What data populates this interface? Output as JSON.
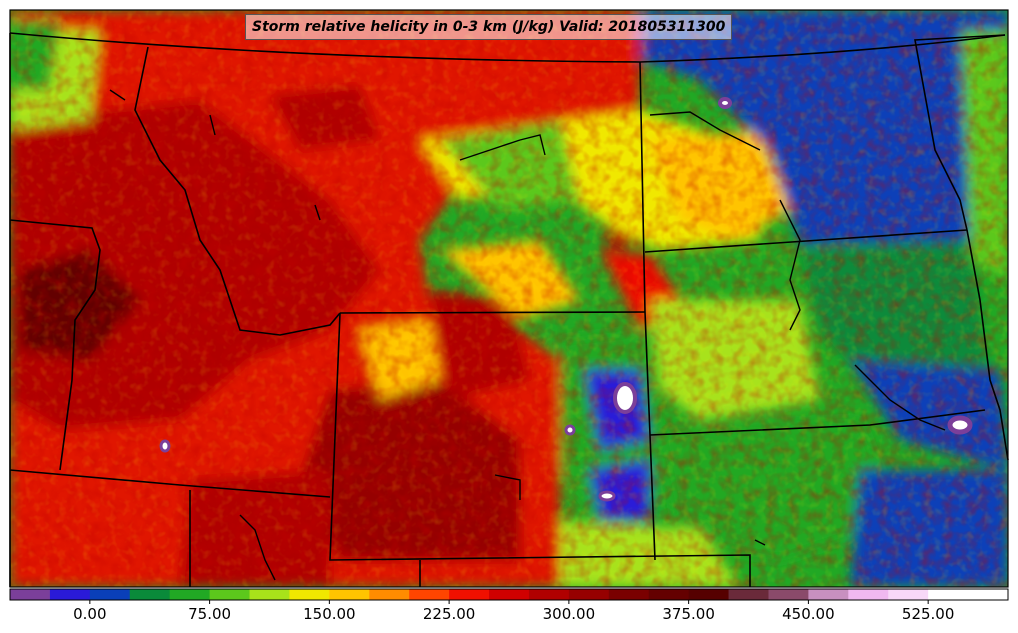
{
  "title": "Storm relative helicity in 0-3 km (J/kg) Valid: 201805311300",
  "colorbar": {
    "tick_labels": [
      "0.00",
      "75.00",
      "150.00",
      "225.00",
      "300.00",
      "375.00",
      "450.00",
      "525.00"
    ],
    "tick_values": [
      0,
      75,
      150,
      225,
      300,
      375,
      450,
      525
    ],
    "range": [
      -50,
      575
    ],
    "interval": 25,
    "colors": [
      "#7b3f9a",
      "#2a1ad8",
      "#0a3fb8",
      "#0a8a3a",
      "#21a824",
      "#5cc81c",
      "#a8e21a",
      "#f0e800",
      "#ffc400",
      "#ff8c00",
      "#ff4500",
      "#f01000",
      "#d00000",
      "#b00000",
      "#960000",
      "#7a0000",
      "#640000",
      "#560000",
      "#6a2a3a",
      "#8a4a6a",
      "#c890c0",
      "#f0b8f0",
      "#f8d8f8",
      "#ffffff"
    ]
  }
}
